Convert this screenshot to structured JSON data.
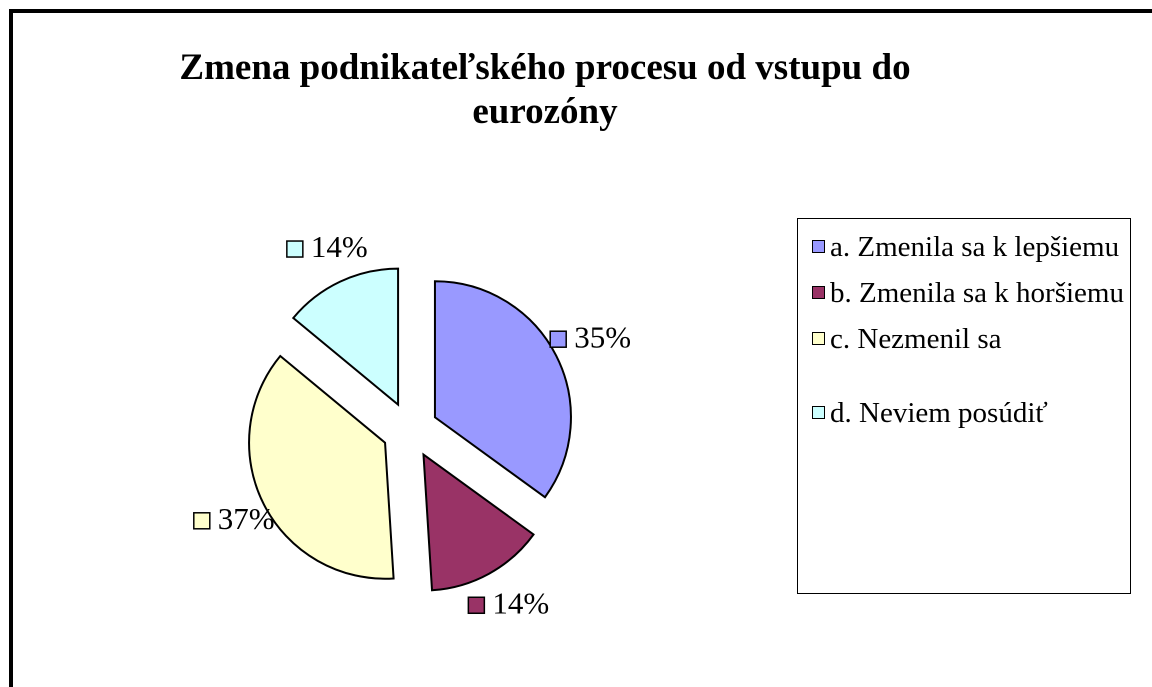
{
  "chart_data": {
    "type": "pie",
    "title": "Zmena podnikateľského procesu od vstupu do eurozóny",
    "categories": [
      "a. Zmenila sa k lepšiemu",
      "b. Zmenila sa k horšiemu",
      "c. Nezmenil sa",
      "d. Neviem posúdiť"
    ],
    "values": [
      35,
      14,
      37,
      14
    ],
    "value_labels": [
      "35%",
      "14%",
      "37%",
      "14%"
    ],
    "colors": [
      "#9999ff",
      "#993366",
      "#ffffcc",
      "#ccffff"
    ],
    "legend": "right"
  }
}
